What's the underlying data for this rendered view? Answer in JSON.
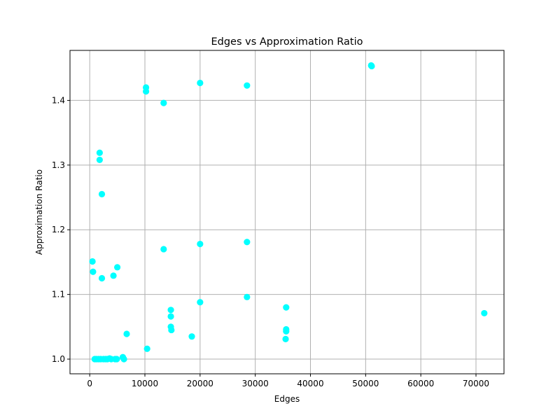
{
  "chart_data": {
    "type": "scatter",
    "title": "Edges vs Approximation Ratio",
    "xlabel": "Edges",
    "ylabel": "Approximation Ratio",
    "xlim": [
      -3575,
      75075
    ],
    "ylim": [
      0.9773,
      1.4773
    ],
    "xticks": [
      0,
      10000,
      20000,
      30000,
      40000,
      50000,
      60000,
      70000
    ],
    "yticks": [
      1.0,
      1.1,
      1.2,
      1.3,
      1.4
    ],
    "xtick_labels": [
      "0",
      "10000",
      "20000",
      "30000",
      "40000",
      "50000",
      "60000",
      "70000"
    ],
    "ytick_labels": [
      "1.0",
      "1.1",
      "1.2",
      "1.3",
      "1.4"
    ],
    "grid": true,
    "marker_color": "#00ffff",
    "series": [
      {
        "points": [
          [
            500,
            1.151
          ],
          [
            600,
            1.135
          ],
          [
            900,
            1.0
          ],
          [
            1200,
            1.0
          ],
          [
            1600,
            1.0
          ],
          [
            1800,
            1.319
          ],
          [
            1800,
            1.308
          ],
          [
            2000,
            1.0
          ],
          [
            2200,
            1.255
          ],
          [
            2200,
            1.125
          ],
          [
            2500,
            1.0
          ],
          [
            2900,
            1.0
          ],
          [
            3200,
            1.0
          ],
          [
            3600,
            1.001
          ],
          [
            3900,
            1.0
          ],
          [
            4300,
            1.129
          ],
          [
            4600,
            1.0
          ],
          [
            4900,
            1.0
          ],
          [
            5000,
            1.142
          ],
          [
            6000,
            1.003
          ],
          [
            6200,
            1.0
          ],
          [
            6700,
            1.039
          ],
          [
            10200,
            1.42
          ],
          [
            10200,
            1.414
          ],
          [
            10400,
            1.016
          ],
          [
            13400,
            1.396
          ],
          [
            13400,
            1.17
          ],
          [
            14700,
            1.076
          ],
          [
            14700,
            1.066
          ],
          [
            14700,
            1.05
          ],
          [
            14800,
            1.045
          ],
          [
            18500,
            1.035
          ],
          [
            20000,
            1.427
          ],
          [
            20000,
            1.178
          ],
          [
            20000,
            1.088
          ],
          [
            28500,
            1.423
          ],
          [
            28500,
            1.181
          ],
          [
            28500,
            1.096
          ],
          [
            35600,
            1.08
          ],
          [
            35600,
            1.046
          ],
          [
            35600,
            1.043
          ],
          [
            35500,
            1.031
          ],
          [
            51000,
            1.454
          ],
          [
            51100,
            1.453
          ],
          [
            71500,
            1.071
          ]
        ]
      }
    ]
  }
}
